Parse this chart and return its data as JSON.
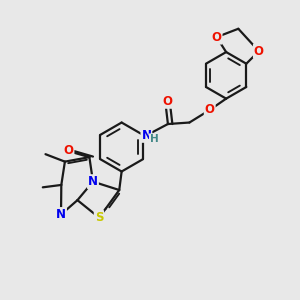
{
  "bg_color": "#e8e8e8",
  "bond_color": "#1a1a1a",
  "bond_width": 1.6,
  "N_color": "#0000ee",
  "S_color": "#c8c800",
  "O_color": "#ee1100",
  "H_color": "#448888",
  "figsize": [
    3.0,
    3.0
  ],
  "dpi": 100,
  "xlim": [
    0,
    10
  ],
  "ylim": [
    0,
    10
  ]
}
